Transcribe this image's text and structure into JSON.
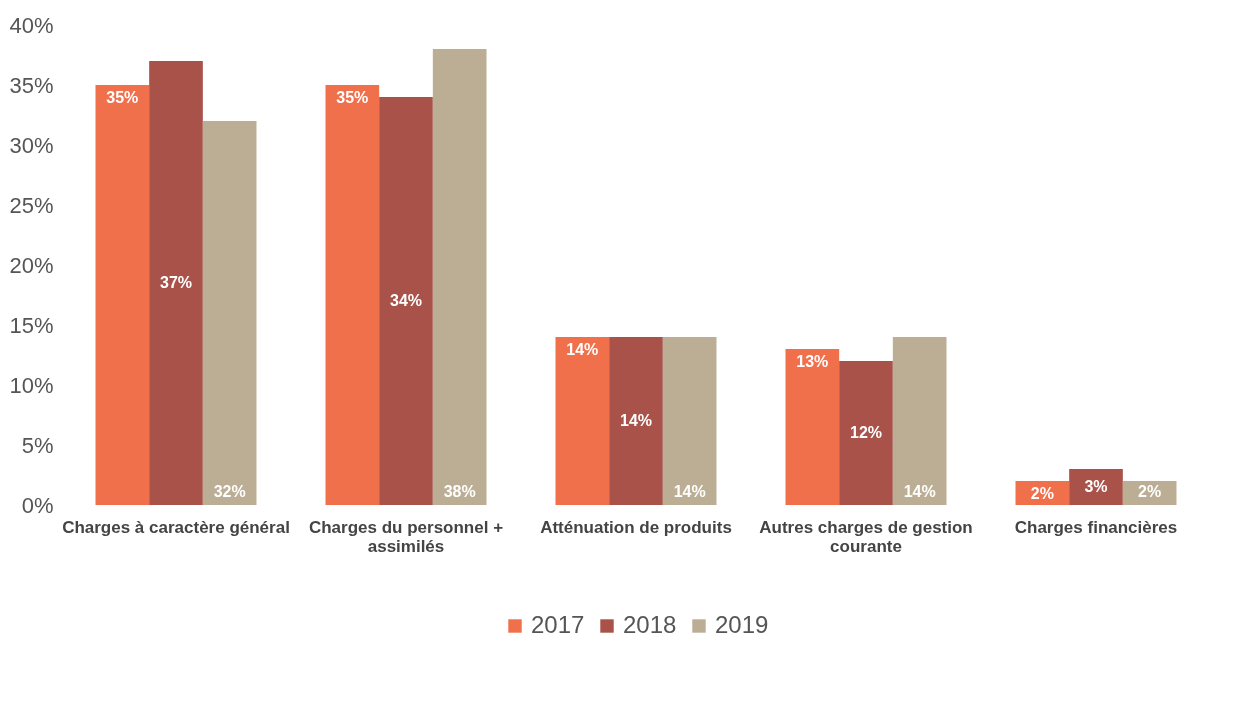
{
  "chart_data": {
    "type": "bar",
    "categories": [
      "Charges à caractère général",
      "Charges du personnel + assimilés",
      "Atténuation de produits",
      "Autres charges de gestion courante",
      "Charges financières"
    ],
    "series": [
      {
        "name": "2017",
        "color": "#f0704c",
        "values": [
          35,
          35,
          14,
          13,
          2
        ],
        "value_labels": [
          "35%",
          "35%",
          "14%",
          "13%",
          "2%"
        ]
      },
      {
        "name": "2018",
        "color": "#a8524a",
        "values": [
          37,
          34,
          14,
          12,
          3
        ],
        "value_labels": [
          "37%",
          "34%",
          "14%",
          "12%",
          "3%"
        ]
      },
      {
        "name": "2019",
        "color": "#bcae94",
        "values": [
          32,
          38,
          14,
          14,
          2
        ],
        "value_labels": [
          "32%",
          "38%",
          "14%",
          "14%",
          "2%"
        ]
      }
    ],
    "ylim": [
      0,
      40
    ],
    "yticks": [
      {
        "value": 0,
        "label": "0%"
      },
      {
        "value": 5,
        "label": "5%"
      },
      {
        "value": 10,
        "label": "10%"
      },
      {
        "value": 15,
        "label": "15%"
      },
      {
        "value": 20,
        "label": "20%"
      },
      {
        "value": 25,
        "label": "25%"
      },
      {
        "value": 30,
        "label": "30%"
      },
      {
        "value": 35,
        "label": "35%"
      },
      {
        "value": 40,
        "label": "40%"
      }
    ],
    "grid": false,
    "legend": "bottom"
  }
}
